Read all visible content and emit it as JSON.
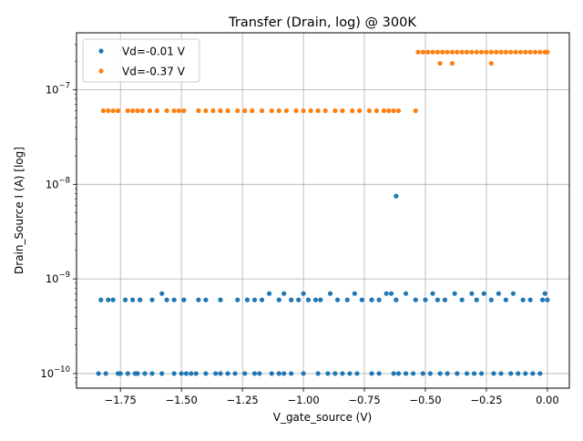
{
  "chart_data": {
    "type": "scatter",
    "title": "Transfer (Drain, log) @ 300K",
    "xlabel": "V_gate_source (V)",
    "ylabel": "Drain_Source I (A) [log]",
    "xlim": [
      -1.93,
      0.09
    ],
    "ylim": [
      7e-11,
      4e-07
    ],
    "yscale": "log",
    "grid": true,
    "legend_loc": "upper left",
    "x_ticks": [
      -1.75,
      -1.5,
      -1.25,
      -1.0,
      -0.75,
      -0.5,
      -0.25,
      0.0
    ],
    "x_tick_labels": [
      "−1.75",
      "−1.50",
      "−1.25",
      "−1.00",
      "−0.75",
      "−0.50",
      "−0.25",
      "0.00"
    ],
    "y_ticks": [
      1e-10,
      1e-09,
      1e-08,
      1e-07
    ],
    "y_tick_labels": [
      {
        "base": "10",
        "exp": "−10"
      },
      {
        "base": "10",
        "exp": "−9"
      },
      {
        "base": "10",
        "exp": "−8"
      },
      {
        "base": "10",
        "exp": "−7"
      }
    ],
    "series": [
      {
        "name": "Vd=-0.01 V",
        "color": "#1f77b4",
        "points": [
          [
            -1.84,
            1e-10
          ],
          [
            -1.81,
            1e-10
          ],
          [
            -1.76,
            1e-10
          ],
          [
            -1.75,
            1e-10
          ],
          [
            -1.72,
            1e-10
          ],
          [
            -1.69,
            1e-10
          ],
          [
            -1.68,
            1e-10
          ],
          [
            -1.65,
            1e-10
          ],
          [
            -1.62,
            1e-10
          ],
          [
            -1.58,
            1e-10
          ],
          [
            -1.53,
            1e-10
          ],
          [
            -1.5,
            1e-10
          ],
          [
            -1.48,
            1e-10
          ],
          [
            -1.46,
            1e-10
          ],
          [
            -1.44,
            1e-10
          ],
          [
            -1.4,
            1e-10
          ],
          [
            -1.36,
            1e-10
          ],
          [
            -1.34,
            1e-10
          ],
          [
            -1.31,
            1e-10
          ],
          [
            -1.28,
            1e-10
          ],
          [
            -1.24,
            1e-10
          ],
          [
            -1.2,
            1e-10
          ],
          [
            -1.18,
            1e-10
          ],
          [
            -1.13,
            1e-10
          ],
          [
            -1.1,
            1e-10
          ],
          [
            -1.08,
            1e-10
          ],
          [
            -1.05,
            1e-10
          ],
          [
            -1.0,
            1e-10
          ],
          [
            -0.94,
            1e-10
          ],
          [
            -0.9,
            1e-10
          ],
          [
            -0.87,
            1e-10
          ],
          [
            -0.84,
            1e-10
          ],
          [
            -0.81,
            1e-10
          ],
          [
            -0.78,
            1e-10
          ],
          [
            -0.72,
            1e-10
          ],
          [
            -0.69,
            1e-10
          ],
          [
            -0.63,
            1e-10
          ],
          [
            -0.61,
            1e-10
          ],
          [
            -0.58,
            1e-10
          ],
          [
            -0.55,
            1e-10
          ],
          [
            -0.51,
            1e-10
          ],
          [
            -0.48,
            1e-10
          ],
          [
            -0.44,
            1e-10
          ],
          [
            -0.41,
            1e-10
          ],
          [
            -0.37,
            1e-10
          ],
          [
            -0.33,
            1e-10
          ],
          [
            -0.3,
            1e-10
          ],
          [
            -0.27,
            1e-10
          ],
          [
            -0.22,
            1e-10
          ],
          [
            -0.19,
            1e-10
          ],
          [
            -0.15,
            1e-10
          ],
          [
            -0.12,
            1e-10
          ],
          [
            -0.09,
            1e-10
          ],
          [
            -0.06,
            1e-10
          ],
          [
            -0.03,
            1e-10
          ],
          [
            -1.83,
            6e-10
          ],
          [
            -1.8,
            6e-10
          ],
          [
            -1.78,
            6e-10
          ],
          [
            -1.73,
            6e-10
          ],
          [
            -1.7,
            6e-10
          ],
          [
            -1.67,
            6e-10
          ],
          [
            -1.62,
            6e-10
          ],
          [
            -1.58,
            7e-10
          ],
          [
            -1.56,
            6e-10
          ],
          [
            -1.53,
            6e-10
          ],
          [
            -1.49,
            6e-10
          ],
          [
            -1.43,
            6e-10
          ],
          [
            -1.4,
            6e-10
          ],
          [
            -1.34,
            6e-10
          ],
          [
            -1.27,
            6e-10
          ],
          [
            -1.23,
            6e-10
          ],
          [
            -1.2,
            6e-10
          ],
          [
            -1.17,
            6e-10
          ],
          [
            -1.14,
            7e-10
          ],
          [
            -1.1,
            6e-10
          ],
          [
            -1.08,
            7e-10
          ],
          [
            -1.05,
            6e-10
          ],
          [
            -1.02,
            6e-10
          ],
          [
            -1.0,
            7e-10
          ],
          [
            -0.98,
            6e-10
          ],
          [
            -0.95,
            6e-10
          ],
          [
            -0.93,
            6e-10
          ],
          [
            -0.89,
            7e-10
          ],
          [
            -0.86,
            6e-10
          ],
          [
            -0.82,
            6e-10
          ],
          [
            -0.79,
            7e-10
          ],
          [
            -0.76,
            6e-10
          ],
          [
            -0.72,
            6e-10
          ],
          [
            -0.69,
            6e-10
          ],
          [
            -0.66,
            7e-10
          ],
          [
            -0.64,
            7e-10
          ],
          [
            -0.62,
            6e-10
          ],
          [
            -0.58,
            7e-10
          ],
          [
            -0.54,
            6e-10
          ],
          [
            -0.5,
            6e-10
          ],
          [
            -0.47,
            7e-10
          ],
          [
            -0.45,
            6e-10
          ],
          [
            -0.42,
            6e-10
          ],
          [
            -0.38,
            7e-10
          ],
          [
            -0.35,
            6e-10
          ],
          [
            -0.31,
            7e-10
          ],
          [
            -0.29,
            6e-10
          ],
          [
            -0.26,
            7e-10
          ],
          [
            -0.23,
            6e-10
          ],
          [
            -0.2,
            7e-10
          ],
          [
            -0.17,
            6e-10
          ],
          [
            -0.14,
            7e-10
          ],
          [
            -0.1,
            6e-10
          ],
          [
            -0.07,
            6e-10
          ],
          [
            -0.02,
            6e-10
          ],
          [
            -0.01,
            7e-10
          ],
          [
            0.0,
            6e-10
          ],
          [
            -0.62,
            7.5e-09
          ]
        ]
      },
      {
        "name": "Vd=-0.37 V",
        "color": "#ff7f0e",
        "points": [
          [
            -1.82,
            6e-08
          ],
          [
            -1.8,
            6e-08
          ],
          [
            -1.78,
            6e-08
          ],
          [
            -1.76,
            6e-08
          ],
          [
            -1.72,
            6e-08
          ],
          [
            -1.7,
            6e-08
          ],
          [
            -1.68,
            6e-08
          ],
          [
            -1.66,
            6e-08
          ],
          [
            -1.63,
            6e-08
          ],
          [
            -1.6,
            6e-08
          ],
          [
            -1.56,
            6e-08
          ],
          [
            -1.53,
            6e-08
          ],
          [
            -1.51,
            6e-08
          ],
          [
            -1.49,
            6e-08
          ],
          [
            -1.43,
            6e-08
          ],
          [
            -1.4,
            6e-08
          ],
          [
            -1.37,
            6e-08
          ],
          [
            -1.34,
            6e-08
          ],
          [
            -1.31,
            6e-08
          ],
          [
            -1.27,
            6e-08
          ],
          [
            -1.24,
            6e-08
          ],
          [
            -1.21,
            6e-08
          ],
          [
            -1.17,
            6e-08
          ],
          [
            -1.13,
            6e-08
          ],
          [
            -1.1,
            6e-08
          ],
          [
            -1.07,
            6e-08
          ],
          [
            -1.03,
            6e-08
          ],
          [
            -1.0,
            6e-08
          ],
          [
            -0.97,
            6e-08
          ],
          [
            -0.94,
            6e-08
          ],
          [
            -0.91,
            6e-08
          ],
          [
            -0.87,
            6e-08
          ],
          [
            -0.84,
            6e-08
          ],
          [
            -0.8,
            6e-08
          ],
          [
            -0.77,
            6e-08
          ],
          [
            -0.73,
            6e-08
          ],
          [
            -0.7,
            6e-08
          ],
          [
            -0.67,
            6e-08
          ],
          [
            -0.65,
            6e-08
          ],
          [
            -0.63,
            6e-08
          ],
          [
            -0.61,
            6e-08
          ],
          [
            -0.54,
            6e-08
          ],
          [
            -0.53,
            2.5e-07
          ],
          [
            -0.51,
            2.5e-07
          ],
          [
            -0.49,
            2.5e-07
          ],
          [
            -0.47,
            2.5e-07
          ],
          [
            -0.45,
            2.5e-07
          ],
          [
            -0.43,
            2.5e-07
          ],
          [
            -0.41,
            2.5e-07
          ],
          [
            -0.39,
            2.5e-07
          ],
          [
            -0.37,
            2.5e-07
          ],
          [
            -0.35,
            2.5e-07
          ],
          [
            -0.33,
            2.5e-07
          ],
          [
            -0.31,
            2.5e-07
          ],
          [
            -0.29,
            2.5e-07
          ],
          [
            -0.27,
            2.5e-07
          ],
          [
            -0.25,
            2.5e-07
          ],
          [
            -0.23,
            2.5e-07
          ],
          [
            -0.21,
            2.5e-07
          ],
          [
            -0.19,
            2.5e-07
          ],
          [
            -0.17,
            2.5e-07
          ],
          [
            -0.15,
            2.5e-07
          ],
          [
            -0.13,
            2.5e-07
          ],
          [
            -0.11,
            2.5e-07
          ],
          [
            -0.09,
            2.5e-07
          ],
          [
            -0.07,
            2.5e-07
          ],
          [
            -0.05,
            2.5e-07
          ],
          [
            -0.03,
            2.5e-07
          ],
          [
            -0.01,
            2.5e-07
          ],
          [
            0.0,
            2.5e-07
          ],
          [
            -0.44,
            1.9e-07
          ],
          [
            -0.39,
            1.9e-07
          ],
          [
            -0.23,
            1.9e-07
          ]
        ]
      }
    ]
  }
}
